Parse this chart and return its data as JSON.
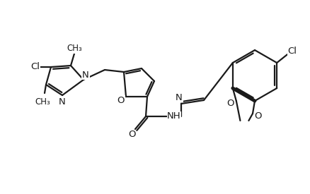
{
  "background": "#ffffff",
  "linecolor": "#1a1a1a",
  "linewidth": 1.6,
  "fontsize": 9.5,
  "figsize": [
    4.38,
    2.75
  ],
  "dpi": 100,
  "xlim": [
    0,
    438
  ],
  "ylim": [
    0,
    275
  ]
}
